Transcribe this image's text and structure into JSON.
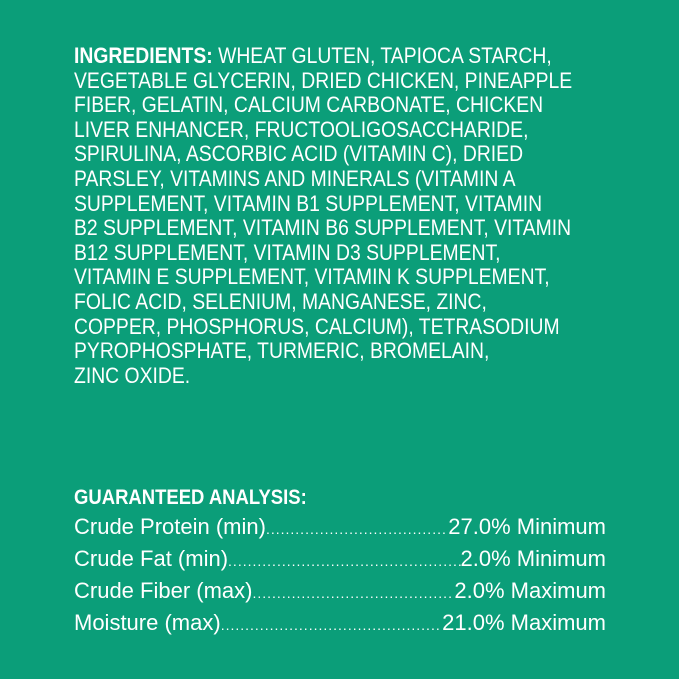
{
  "ingredients": {
    "label": "INGREDIENTS:",
    "lines": [
      " WHEAT GLUTEN, TAPIOCA STARCH,",
      "VEGETABLE GLYCERIN, DRIED CHICKEN, PINEAPPLE",
      "FIBER, GELATIN, CALCIUM CARBONATE, CHICKEN",
      "LIVER ENHANCER, FRUCTOOLIGOSACCHARIDE,",
      "SPIRULINA, ASCORBIC ACID (VITAMIN C), DRIED",
      "PARSLEY, VITAMINS AND MINERALS (VITAMIN A",
      "SUPPLEMENT, VITAMIN B1 SUPPLEMENT, VITAMIN",
      "B2 SUPPLEMENT, VITAMIN B6 SUPPLEMENT, VITAMIN",
      "B12 SUPPLEMENT, VITAMIN D3 SUPPLEMENT,",
      "VITAMIN E SUPPLEMENT, VITAMIN K SUPPLEMENT,",
      "FOLIC ACID, SELENIUM, MANGANESE, ZINC,",
      "COPPER, PHOSPHORUS, CALCIUM), TETRASODIUM",
      "PYROPHOSPHATE, TURMERIC, BROMELAIN,",
      "ZINC OXIDE."
    ]
  },
  "analysis": {
    "title": "GUARANTEED ANALYSIS:",
    "rows": [
      {
        "name": "Crude Protein (min)",
        "value": "27.0% Minimum"
      },
      {
        "name": "Crude Fat (min)",
        "value": "2.0% Minimum"
      },
      {
        "name": "Crude Fiber (max)",
        "value": "2.0% Maximum"
      },
      {
        "name": "Moisture (max)",
        "value": "21.0% Maximum"
      }
    ]
  },
  "colors": {
    "background": "#0b9e79",
    "text": "#ffffff"
  }
}
